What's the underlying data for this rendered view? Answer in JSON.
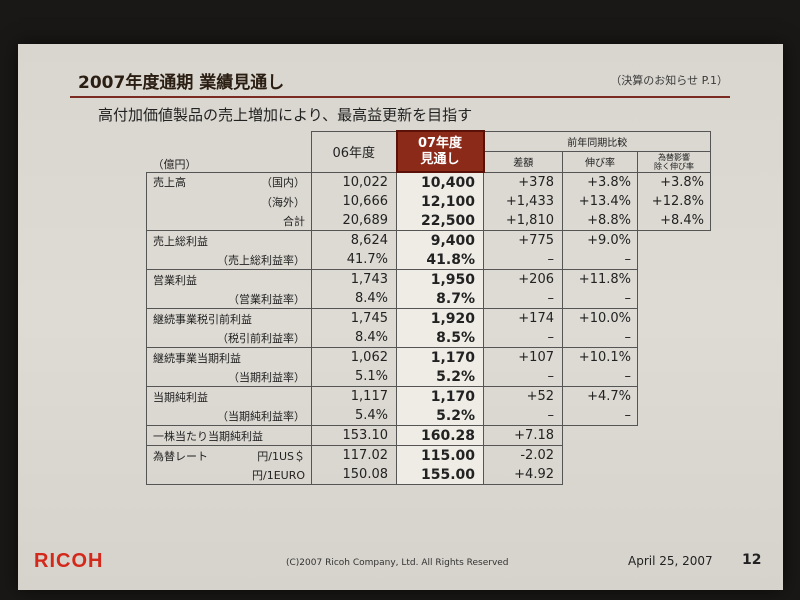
{
  "slide": {
    "title": "2007年度通期 業績見通し",
    "ref": "（決算のお知らせ P.1）",
    "subtitle": "高付加価値製品の売上増加により、最高益更新を目指す",
    "footer_logo": "RICOH",
    "copyright": "(C)2007 Ricoh Company, Ltd. All Rights Reserved",
    "date": "April 25, 2007",
    "page_number": "12"
  },
  "table": {
    "unit": "（億円）",
    "col_06": "06年度",
    "col_07_line1": "07年度",
    "col_07_line2": "見通し",
    "col_group": "前年同期比較",
    "col_diff": "差額",
    "col_growth": "伸び率",
    "col_fx_line1": "為替影響",
    "col_fx_line2": "除く伸び率",
    "rows": [
      {
        "label": "売上高",
        "sub": "（国内）",
        "v06": "10,022",
        "v07": "10,400",
        "diff": "+378",
        "growth": "+3.8%",
        "fx": "+3.8%"
      },
      {
        "label": "",
        "sub": "（海外）",
        "v06": "10,666",
        "v07": "12,100",
        "diff": "+1,433",
        "growth": "+13.4%",
        "fx": "+12.8%"
      },
      {
        "label": "",
        "sub": "合計",
        "v06": "20,689",
        "v07": "22,500",
        "diff": "+1,810",
        "growth": "+8.8%",
        "fx": "+8.4%"
      },
      {
        "label": "売上総利益",
        "sub": "",
        "v06": "8,624",
        "v07": "9,400",
        "diff": "+775",
        "growth": "+9.0%"
      },
      {
        "label": "",
        "sub": "（売上総利益率）",
        "v06": "41.7%",
        "v07": "41.8%",
        "diff": "–",
        "growth": "–"
      },
      {
        "label": "営業利益",
        "sub": "",
        "v06": "1,743",
        "v07": "1,950",
        "diff": "+206",
        "growth": "+11.8%"
      },
      {
        "label": "",
        "sub": "（営業利益率）",
        "v06": "8.4%",
        "v07": "8.7%",
        "diff": "–",
        "growth": "–"
      },
      {
        "label": "継続事業税引前利益",
        "sub": "",
        "v06": "1,745",
        "v07": "1,920",
        "diff": "+174",
        "growth": "+10.0%"
      },
      {
        "label": "",
        "sub": "（税引前利益率）",
        "v06": "8.4%",
        "v07": "8.5%",
        "diff": "–",
        "growth": "–"
      },
      {
        "label": "継続事業当期利益",
        "sub": "",
        "v06": "1,062",
        "v07": "1,170",
        "diff": "+107",
        "growth": "+10.1%"
      },
      {
        "label": "",
        "sub": "（当期利益率）",
        "v06": "5.1%",
        "v07": "5.2%",
        "diff": "–",
        "growth": "–"
      },
      {
        "label": "当期純利益",
        "sub": "",
        "v06": "1,117",
        "v07": "1,170",
        "diff": "+52",
        "growth": "+4.7%"
      },
      {
        "label": "",
        "sub": "（当期純利益率）",
        "v06": "5.4%",
        "v07": "5.2%",
        "diff": "–",
        "growth": "–"
      },
      {
        "label": "一株当たり当期純利益",
        "sub": "",
        "v06": "153.10",
        "v07": "160.28",
        "diff": "+7.18"
      },
      {
        "label": "為替レート",
        "sub": "円/1US＄",
        "v06": "117.02",
        "v07": "115.00",
        "diff": "-2.02"
      },
      {
        "label": "",
        "sub": "円/1EURO",
        "v06": "150.08",
        "v07": "155.00",
        "diff": "+4.92"
      }
    ]
  }
}
